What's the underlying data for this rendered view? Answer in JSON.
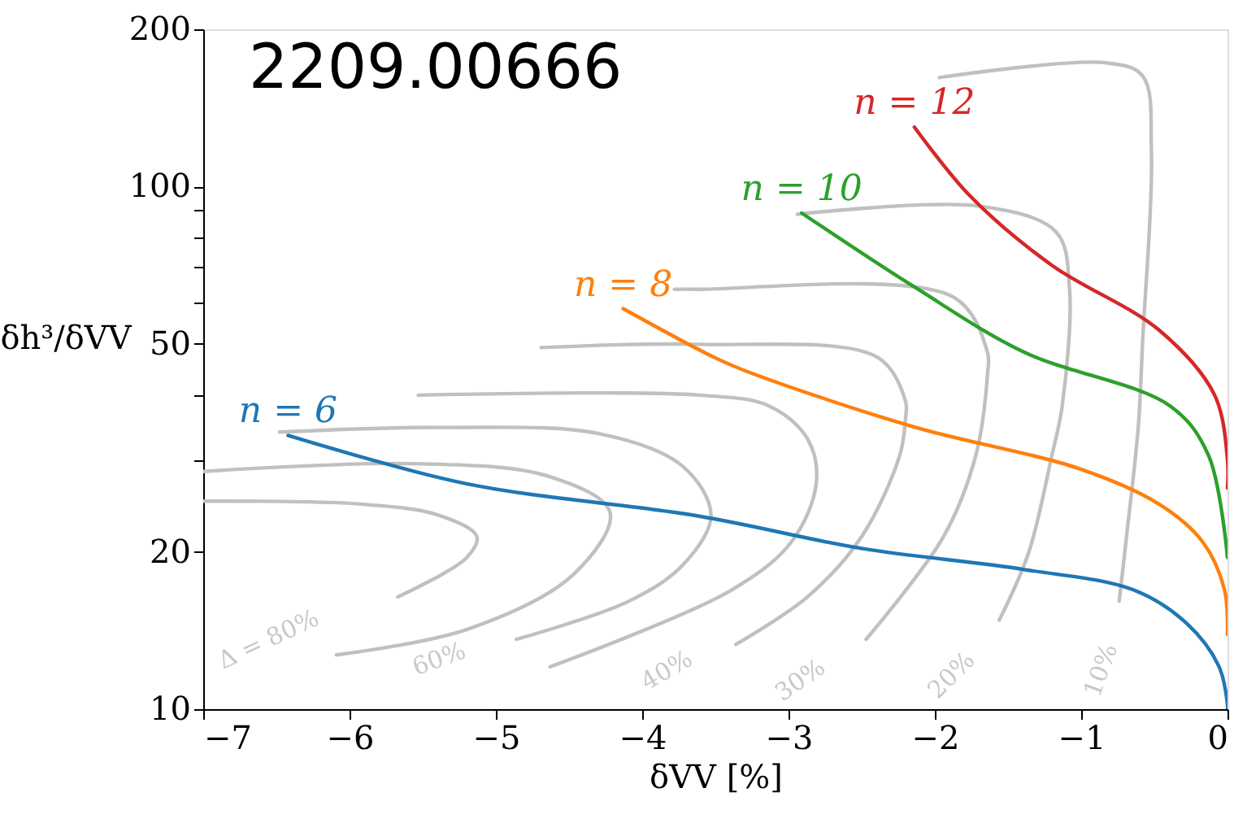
{
  "chart_data": {
    "type": "line",
    "xlabel": "δVV [%]",
    "ylabel": "δh³/δVV",
    "xlim": [
      -7,
      0
    ],
    "xticks": [
      -7,
      -6,
      -5,
      -4,
      -3,
      -2,
      -1,
      0
    ],
    "ylim": [
      10,
      200
    ],
    "log": "y",
    "yticks": [
      10,
      20,
      {
        "value": 30,
        "label": null
      },
      {
        "value": 40,
        "label": null
      },
      50,
      {
        "value": 60,
        "label": null
      },
      {
        "value": 70,
        "label": null
      },
      {
        "value": 80,
        "label": null
      },
      {
        "value": 90,
        "label": null
      },
      100,
      200
    ],
    "grid": false,
    "legend": false,
    "marker": "none",
    "line_style": "solid",
    "series": [
      {
        "color": "#c0c0c0",
        "x": [
          -7,
          -5.94,
          -5.39,
          -5.13,
          -5.2,
          -5.67
        ],
        "values": [
          25.0,
          24.7,
          23.5,
          21.4,
          19.5,
          16.4
        ]
      },
      {
        "color": "#c0c0c0",
        "x": [
          -7,
          -5.58,
          -4.64,
          -4.22,
          -4.47,
          -5.2,
          -6.09
        ],
        "values": [
          28.5,
          29.5,
          27.9,
          23.8,
          18.1,
          14.2,
          12.7
        ]
      },
      {
        "color": "#c0c0c0",
        "x": [
          -6.48,
          -5.39,
          -4.28,
          -3.72,
          -3.53,
          -3.72,
          -4.09,
          -4.86
        ],
        "values": [
          33.9,
          34.6,
          33.6,
          29.1,
          23.5,
          18.9,
          16.1,
          13.6
        ]
      },
      {
        "color": "#c0c0c0",
        "x": [
          -5.53,
          -3.61,
          -3.13,
          -2.87,
          -2.81,
          -2.98,
          -3.39,
          -4.63
        ],
        "values": [
          39.9,
          39.9,
          38.0,
          32.9,
          27.1,
          20.9,
          16.9,
          12.05
        ]
      },
      {
        "color": "#c0c0c0",
        "x": [
          -4.69,
          -3.61,
          -2.39,
          -2.2,
          -2.2,
          -2.24,
          -2.5,
          -2.87,
          -3.36
        ],
        "values": [
          49.2,
          49.9,
          47.1,
          38.8,
          36.1,
          30.6,
          21.4,
          16.4,
          13.3
        ]
      },
      {
        "color": "#c0c0c0",
        "x": [
          -3.78,
          -3.61,
          -1.87,
          -1.64,
          -1.64,
          -1.72,
          -1.94,
          -2.47
        ],
        "values": [
          63.6,
          63.6,
          61.4,
          48.1,
          43.8,
          30.6,
          21.4,
          13.6
        ]
      },
      {
        "color": "#c0c0c0",
        "x": [
          -2.94,
          -1.69,
          -1.17,
          -1.08,
          -1.13,
          -1.2,
          -1.36,
          -1.56
        ],
        "values": [
          88.5,
          91.7,
          81.8,
          64.1,
          38.0,
          30.6,
          19.9,
          14.8
        ]
      },
      {
        "color": "#c0c0c0",
        "x": [
          -1.97,
          -0.83,
          -0.58,
          -0.52,
          -0.58,
          -0.61,
          -0.69,
          -0.74
        ],
        "values": [
          161.7,
          172.5,
          162.8,
          117.1,
          50.6,
          34.6,
          21.4,
          16.1
        ]
      },
      {
        "name": "n = 6",
        "color": "#1f77b4",
        "x": [
          -6.42,
          -5.2,
          -3.61,
          -2.5,
          -1.39,
          -0.64,
          -0.28,
          -0.06,
          0,
          0
        ],
        "values": [
          33.4,
          27,
          23.4,
          20.3,
          18.5,
          16.9,
          14.6,
          12.1,
          10.2,
          10
        ]
      },
      {
        "name": "n = 8",
        "color": "#ff7f0e",
        "x": [
          -4.13,
          -3.5,
          -3.24,
          -2.13,
          -1.02,
          -0.47,
          -0.17,
          -0.02,
          0
        ],
        "values": [
          58.4,
          47,
          43.8,
          34.6,
          28.9,
          24.7,
          20.9,
          16.9,
          13.9
        ]
      },
      {
        "name": "n = 10",
        "color": "#2ca02c",
        "x": [
          -2.91,
          -2.13,
          -1.39,
          -0.39,
          -0.13,
          0
        ],
        "values": [
          89,
          64.0,
          48.2,
          38,
          30.6,
          19.5
        ]
      },
      {
        "name": "n = 12",
        "color": "#d62728",
        "x": [
          -2.14,
          -1.76,
          -1.2,
          -0.47,
          -0.09,
          0,
          0
        ],
        "values": [
          130,
          96,
          70.7,
          53.2,
          40,
          30,
          26.5
        ]
      }
    ],
    "annotations": [
      "2209.00666",
      "Δ = 80%",
      "60%",
      "40%",
      "30%",
      "20%",
      "10%"
    ]
  }
}
